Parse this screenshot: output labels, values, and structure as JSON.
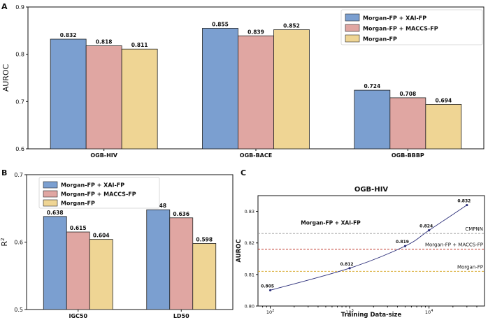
{
  "panels": {
    "a": "A",
    "b": "B",
    "c": "C"
  },
  "colors": {
    "xai": "#7b9fd0",
    "maccs": "#e0a6a2",
    "morgan": "#efd594",
    "cmpnn_line": "#999999",
    "maccs_line": "#c0392b",
    "morgan_line": "#d4a017",
    "curve": "#2c2f7a"
  },
  "chart_data": [
    {
      "type": "bar",
      "panel": "A",
      "ylabel": "AUROC",
      "ylim": [
        0.6,
        0.9
      ],
      "yticks": [
        "0.6",
        "0.7",
        "0.8",
        "0.9"
      ],
      "categories": [
        "OGB-HIV",
        "OGB-BACE",
        "OGB-BBBP"
      ],
      "series": [
        {
          "name": "Morgan-FP + XAI-FP",
          "values": [
            0.832,
            0.855,
            0.724
          ],
          "labels": [
            "0.832",
            "0.855",
            "0.724"
          ]
        },
        {
          "name": "Morgan-FP + MACCS-FP",
          "values": [
            0.818,
            0.839,
            0.708
          ],
          "labels": [
            "0.818",
            "0.839",
            "0.708"
          ]
        },
        {
          "name": "Morgan-FP",
          "values": [
            0.811,
            0.852,
            0.694
          ],
          "labels": [
            "0.811",
            "0.852",
            "0.694"
          ]
        }
      ],
      "legend": "top-right"
    },
    {
      "type": "bar",
      "panel": "B",
      "ylabel": "R",
      "ylabel_sup": "2",
      "ylim": [
        0.5,
        0.7
      ],
      "yticks": [
        "0.5",
        "0.6",
        "0.7"
      ],
      "categories": [
        "IGC50",
        "LD50"
      ],
      "series": [
        {
          "name": "Morgan-FP + XAI-FP",
          "values": [
            0.638,
            0.648
          ],
          "labels": [
            "0.638",
            "0.648"
          ]
        },
        {
          "name": "Morgan-FP + MACCS-FP",
          "values": [
            0.615,
            0.636
          ],
          "labels": [
            "0.615",
            "0.636"
          ]
        },
        {
          "name": "Morgan-FP",
          "values": [
            0.604,
            0.598
          ],
          "labels": [
            "0.604",
            "0.598"
          ]
        }
      ],
      "legend": "top-left"
    },
    {
      "type": "line",
      "panel": "C",
      "title": "OGB-HIV",
      "xlabel": "Training Data-size",
      "ylabel": "AUROC",
      "xscale": "log",
      "xlim": [
        70,
        50000
      ],
      "ylim": [
        0.8,
        0.835
      ],
      "xticks": [
        {
          "value": 100,
          "base": "10",
          "exp": "2"
        },
        {
          "value": 1000,
          "base": "10",
          "exp": "3"
        },
        {
          "value": 10000,
          "base": "10",
          "exp": "4"
        }
      ],
      "yticks": [
        "0.80",
        "0.81",
        "0.82",
        "0.83"
      ],
      "series": [
        {
          "annotation": "Morgan-FP + XAI-FP",
          "x": [
            100,
            1000,
            5000,
            10000,
            30000
          ],
          "y": [
            0.805,
            0.812,
            0.819,
            0.824,
            0.832
          ],
          "labels": [
            "0.805",
            "0.812",
            "0.819",
            "0.824",
            "0.832"
          ]
        }
      ],
      "hlines": [
        {
          "label": "CMPNN",
          "y": 0.823,
          "color": "#999999"
        },
        {
          "label": "Morgan-FP + MACCS-FP",
          "y": 0.818,
          "color": "#c0392b"
        },
        {
          "label": "Morgan-FP",
          "y": 0.811,
          "color": "#d4a017"
        }
      ]
    }
  ]
}
